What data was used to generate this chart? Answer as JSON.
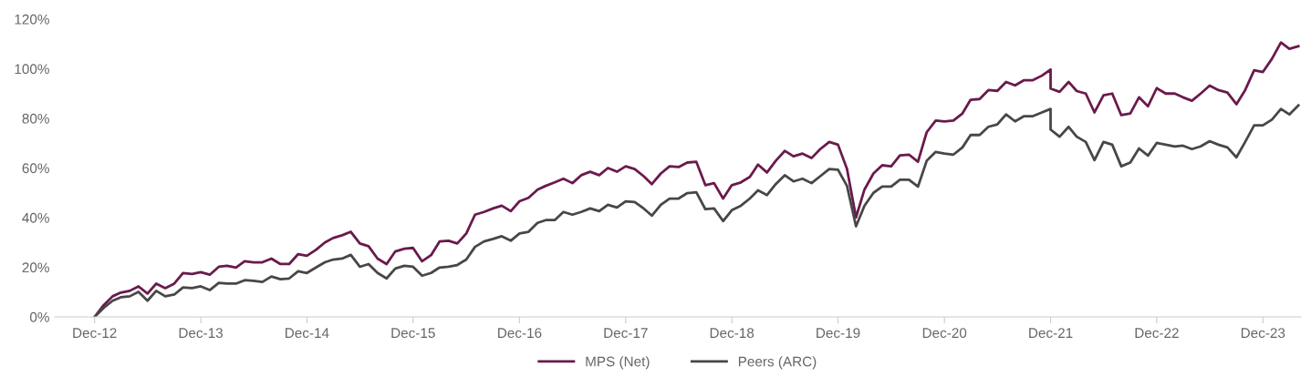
{
  "chart_data": {
    "type": "line",
    "x": [
      "2012-12",
      "2013-01",
      "2013-02",
      "2013-03",
      "2013-04",
      "2013-05",
      "2013-06",
      "2013-07",
      "2013-08",
      "2013-09",
      "2013-10",
      "2013-11",
      "2013-12",
      "2014-01",
      "2014-02",
      "2014-03",
      "2014-04",
      "2014-05",
      "2014-06",
      "2014-07",
      "2014-08",
      "2014-09",
      "2014-10",
      "2014-11",
      "2014-12",
      "2015-01",
      "2015-02",
      "2015-03",
      "2015-04",
      "2015-05",
      "2015-06",
      "2015-07",
      "2015-08",
      "2015-09",
      "2015-10",
      "2015-11",
      "2015-12",
      "2016-01",
      "2016-02",
      "2016-03",
      "2016-04",
      "2016-05",
      "2016-06",
      "2016-07",
      "2016-08",
      "2016-09",
      "2016-10",
      "2016-11",
      "2016-12",
      "2017-01",
      "2017-02",
      "2017-03",
      "2017-04",
      "2017-05",
      "2017-06",
      "2017-07",
      "2017-08",
      "2017-09",
      "2017-10",
      "2017-11",
      "2017-12",
      "2018-01",
      "2018-02",
      "2018-03",
      "2018-04",
      "2018-05",
      "2018-06",
      "2018-07",
      "2018-08",
      "2018-09",
      "2018-10",
      "2018-11",
      "2018-12",
      "2019-01",
      "2019-02",
      "2019-03",
      "2019-04",
      "2019-05",
      "2019-06",
      "2019-07",
      "2019-08",
      "2019-09",
      "2019-10",
      "2019-11",
      "2019-12",
      "2020-01",
      "2020-02",
      "2020-03",
      "2020-04",
      "2020-05",
      "2020-06",
      "2020-07",
      "2020-08",
      "2020-09",
      "2020-10",
      "2020-11",
      "2020-12",
      "2021-01",
      "2021-02",
      "2021-03",
      "2021-04",
      "2021-05",
      "2021-06",
      "2021-07",
      "2021-08",
      "2021-09",
      "2021-10",
      "2021-11",
      "2021-12",
      "2021-12",
      "2022-01",
      "2022-02",
      "2022-03",
      "2022-04",
      "2022-05",
      "2022-06",
      "2022-07",
      "2022-08",
      "2022-09",
      "2022-10",
      "2022-11",
      "2022-12",
      "2023-01",
      "2023-02",
      "2023-03",
      "2023-04",
      "2023-05",
      "2023-06",
      "2023-07",
      "2023-08",
      "2023-09",
      "2023-10",
      "2023-11",
      "2023-12",
      "2024-01",
      "2024-02",
      "2024-03",
      "2024-04"
    ],
    "series": [
      {
        "name": "MPS (Net)",
        "color": "#6a1a4c",
        "values": [
          0,
          4.7,
          8.3,
          9.8,
          10.5,
          12.3,
          9.4,
          13.4,
          11.6,
          13.4,
          17.7,
          17.3,
          18,
          17,
          20.2,
          20.6,
          19.9,
          22.4,
          22,
          22,
          23.5,
          21.3,
          21.3,
          25.3,
          24.6,
          27,
          30,
          31.8,
          32.9,
          34.3,
          29.6,
          28.5,
          23.5,
          21.3,
          26.4,
          27.5,
          27.8,
          22.4,
          24.9,
          30.4,
          30.7,
          29.6,
          33.6,
          41.2,
          42.3,
          43.7,
          44.8,
          42.6,
          46.6,
          48,
          51.3,
          52.8,
          54.2,
          55.7,
          53.9,
          57.1,
          58.5,
          57.1,
          60,
          58.5,
          60.7,
          59.6,
          56.7,
          53.5,
          57.8,
          60.7,
          60.4,
          62.2,
          62.5,
          53.1,
          53.9,
          47.7,
          53.1,
          54.2,
          56.4,
          61.4,
          58.2,
          62.9,
          66.9,
          64.7,
          65.8,
          64,
          67.6,
          70.5,
          69.4,
          59.6,
          40.1,
          51.3,
          57.8,
          61.1,
          60.7,
          65.1,
          65.4,
          62.5,
          74.4,
          79.1,
          78.8,
          79.1,
          82,
          87.5,
          87.8,
          91.4,
          91.1,
          94.7,
          93.3,
          95.4,
          95.4,
          97.2,
          99.7,
          92,
          90.7,
          94.7,
          91,
          90,
          82.4,
          89.3,
          90,
          81.3,
          82,
          88.5,
          84.9,
          92.2,
          90,
          90,
          88.5,
          87.1,
          90,
          93.2,
          91.4,
          90.4,
          85.7,
          91.4,
          99.4,
          98.7,
          104,
          110.6,
          108,
          109.1
        ]
      },
      {
        "name": "Peers (ARC)",
        "color": "#474747",
        "values": [
          0,
          3.6,
          6.5,
          7.9,
          8.3,
          10.1,
          6.5,
          10.5,
          8.3,
          9,
          11.9,
          11.6,
          12.3,
          10.8,
          13.7,
          13.4,
          13.4,
          14.8,
          14.5,
          14.1,
          16.3,
          15.2,
          15.5,
          18.4,
          17.7,
          19.9,
          22,
          23.1,
          23.5,
          25,
          20.2,
          21.3,
          17.7,
          15.5,
          19.5,
          20.6,
          20.2,
          16.6,
          17.7,
          19.9,
          20.2,
          20.9,
          23.1,
          28.2,
          30.4,
          31.4,
          32.5,
          30.7,
          33.6,
          34.3,
          37.9,
          39,
          39,
          42.3,
          41.2,
          42.3,
          43.7,
          42.6,
          45.2,
          44.1,
          46.6,
          46.3,
          43.7,
          40.8,
          45.2,
          47.7,
          47.7,
          49.9,
          50.2,
          43.4,
          43.7,
          38.6,
          43,
          44.8,
          47.7,
          51,
          49.1,
          53.5,
          57.1,
          54.6,
          55.7,
          53.9,
          56.7,
          59.6,
          59.3,
          52.8,
          36.5,
          44.8,
          50,
          52.5,
          52.5,
          55.3,
          55.3,
          52.5,
          62.9,
          66.5,
          65.8,
          65.4,
          68.3,
          73.3,
          73.3,
          76.6,
          77.6,
          81.6,
          78.8,
          80.9,
          80.9,
          82.4,
          83.8,
          75.5,
          72.6,
          76.6,
          72.6,
          70.5,
          63.2,
          70.5,
          69.4,
          60.7,
          62.2,
          67.9,
          65,
          70.1,
          69.4,
          68.7,
          69,
          67.6,
          68.7,
          70.8,
          69.4,
          68.3,
          64.3,
          70.5,
          77.2,
          77.2,
          79.5,
          83.8,
          81.6,
          85.2
        ]
      }
    ],
    "xlim": [
      "2012-07-17",
      "2024-04-10"
    ],
    "xticks": [
      {
        "value": "2012-12",
        "label": "Dec-12"
      },
      {
        "value": "2013-12",
        "label": "Dec-13"
      },
      {
        "value": "2014-12",
        "label": "Dec-14"
      },
      {
        "value": "2015-12",
        "label": "Dec-15"
      },
      {
        "value": "2016-12",
        "label": "Dec-16"
      },
      {
        "value": "2017-12",
        "label": "Dec-17"
      },
      {
        "value": "2018-12",
        "label": "Dec-18"
      },
      {
        "value": "2019-12",
        "label": "Dec-19"
      },
      {
        "value": "2020-12",
        "label": "Dec-20"
      },
      {
        "value": "2021-12",
        "label": "Dec-21"
      },
      {
        "value": "2022-12",
        "label": "Dec-22"
      },
      {
        "value": "2023-12",
        "label": "Dec-23"
      }
    ],
    "ylim": [
      0,
      120
    ],
    "yticks": [
      {
        "value": 0,
        "label": "0%"
      },
      {
        "value": 20,
        "label": "20%"
      },
      {
        "value": 40,
        "label": "40%"
      },
      {
        "value": 60,
        "label": "60%"
      },
      {
        "value": 80,
        "label": "80%"
      },
      {
        "value": 100,
        "label": "100%"
      },
      {
        "value": 120,
        "label": "120%"
      }
    ],
    "grid": false,
    "legend": "bottom",
    "marker": "none",
    "line_style": "solid"
  }
}
